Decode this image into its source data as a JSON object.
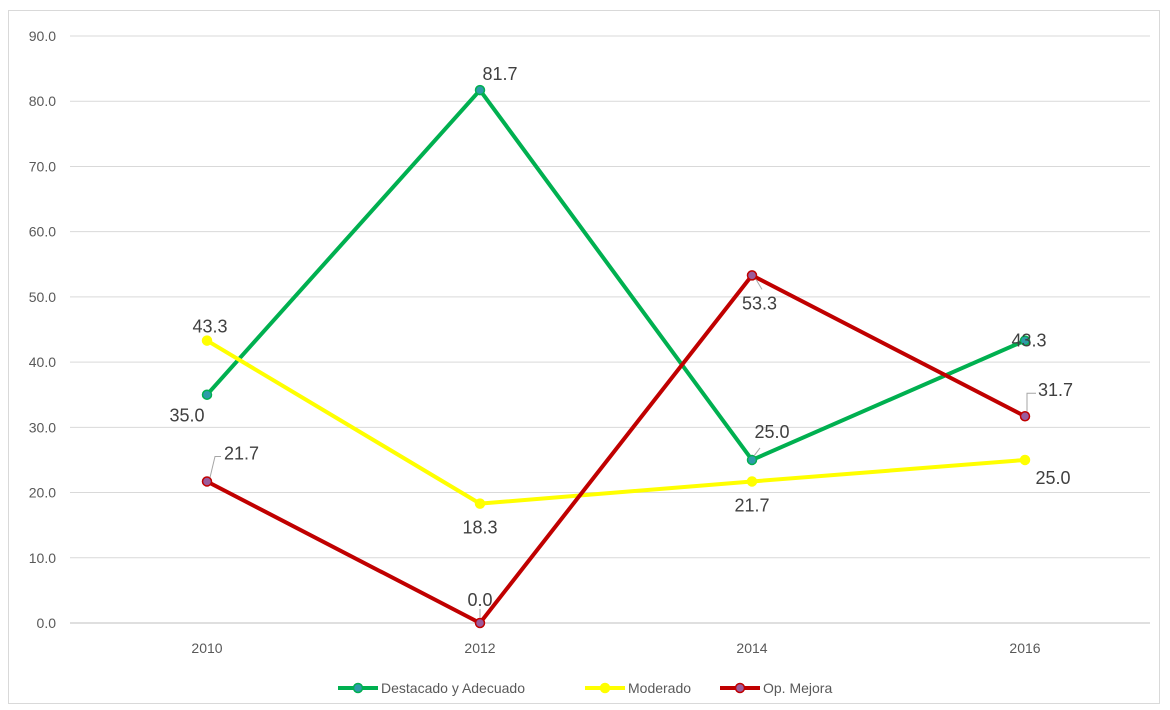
{
  "chart_data": {
    "type": "line",
    "title": "",
    "xlabel": "",
    "ylabel": "",
    "categories": [
      "2010",
      "2012",
      "2014",
      "2016"
    ],
    "yticks": [
      "0.0",
      "10.0",
      "20.0",
      "30.0",
      "40.0",
      "50.0",
      "60.0",
      "70.0",
      "80.0",
      "90.0"
    ],
    "ylim": [
      0,
      90
    ],
    "grid": true,
    "legend_position": "bottom",
    "series": [
      {
        "name": "Destacado y Adecuado",
        "color": "#00b050",
        "marker_color": "#2e9ba8",
        "values": [
          35.0,
          81.7,
          25.0,
          43.3
        ],
        "labels": [
          "35.0",
          "81.7",
          "25.0",
          "43.3"
        ]
      },
      {
        "name": "Moderado",
        "color": "#ffff00",
        "marker_color": "#ffff00",
        "values": [
          43.3,
          18.3,
          21.7,
          25.0
        ],
        "labels": [
          "43.3",
          "18.3",
          "21.7",
          "25.0"
        ]
      },
      {
        "name": "Op. Mejora",
        "color": "#c00000",
        "marker_color": "#9b5b9b",
        "values": [
          21.7,
          0.0,
          53.3,
          31.7
        ],
        "labels": [
          "21.7",
          "0.0",
          "53.3",
          "31.7"
        ]
      }
    ]
  }
}
